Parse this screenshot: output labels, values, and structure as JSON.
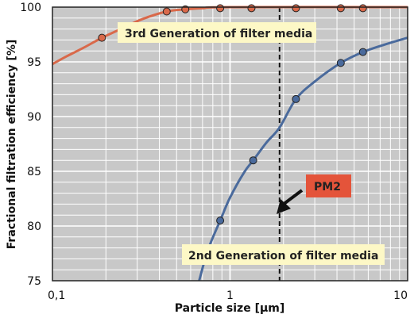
{
  "chart_data": {
    "type": "line",
    "xscale": "log",
    "xlim": [
      0.1,
      10
    ],
    "ylim": [
      75,
      100
    ],
    "xlabel": "Particle size [µm]",
    "ylabel": "Fractional filtration efficiency [%]",
    "x_tick_labels": [
      {
        "value": 0.1,
        "label": "0,1"
      },
      {
        "value": 1,
        "label": "1"
      },
      {
        "value": 10,
        "label": "10"
      }
    ],
    "y_ticks": [
      75,
      80,
      85,
      90,
      95,
      100
    ],
    "grid": true,
    "series": [
      {
        "name": "3rd Generation of filter media",
        "color": "#d9694a",
        "curve": [
          [
            0.1,
            94.8
          ],
          [
            0.12,
            95.5
          ],
          [
            0.15,
            96.3
          ],
          [
            0.19,
            97.2
          ],
          [
            0.25,
            98.1
          ],
          [
            0.32,
            98.9
          ],
          [
            0.44,
            99.6
          ],
          [
            0.56,
            99.8
          ],
          [
            0.7,
            99.9
          ],
          [
            1,
            100
          ],
          [
            10,
            100
          ]
        ],
        "markers": [
          [
            0.19,
            97.2
          ],
          [
            0.44,
            99.6
          ],
          [
            0.56,
            99.8
          ],
          [
            0.88,
            99.9
          ],
          [
            1.32,
            99.9
          ],
          [
            2.35,
            99.9
          ],
          [
            4.2,
            99.9
          ],
          [
            5.6,
            99.9
          ]
        ]
      },
      {
        "name": "2nd Generation of filter media",
        "color": "#4a6a9c",
        "curve": [
          [
            0.67,
            75
          ],
          [
            0.75,
            77.8
          ],
          [
            0.88,
            80.5
          ],
          [
            1.0,
            82.6
          ],
          [
            1.2,
            84.9
          ],
          [
            1.35,
            86.0
          ],
          [
            1.6,
            87.6
          ],
          [
            1.9,
            89.0
          ],
          [
            2.35,
            91.6
          ],
          [
            3.0,
            93.2
          ],
          [
            4.2,
            94.9
          ],
          [
            5.6,
            95.9
          ],
          [
            7.5,
            96.6
          ],
          [
            10,
            97.2
          ]
        ],
        "markers": [
          [
            0.88,
            80.5
          ],
          [
            1.35,
            86.0
          ],
          [
            2.35,
            91.6
          ],
          [
            4.2,
            94.9
          ],
          [
            5.6,
            95.9
          ]
        ]
      }
    ],
    "annotations": [
      {
        "text": "PM2",
        "color": "#e4543a"
      }
    ]
  },
  "colors": {
    "plot_bg": "#c8c8c8",
    "grid": "#ffffff",
    "label_box": "#fdf8c6",
    "pm_box": "#e4543a"
  }
}
